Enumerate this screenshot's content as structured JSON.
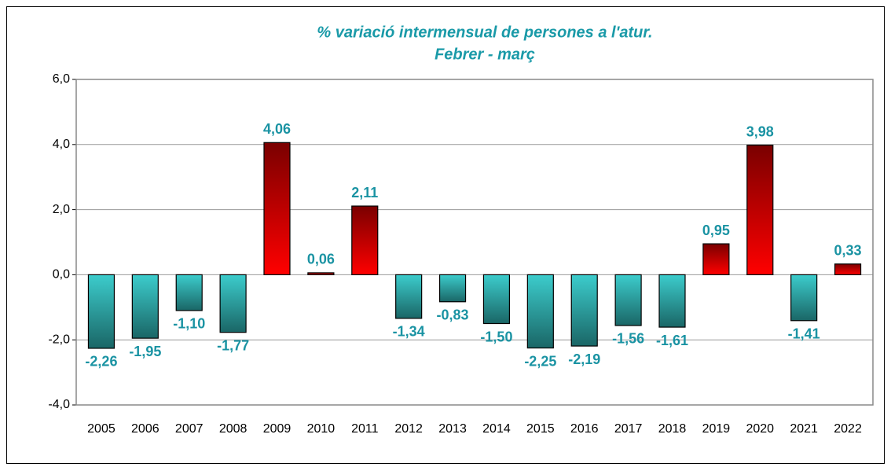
{
  "chart_data": {
    "type": "bar",
    "title": "% variació intermensual de persones a l'atur.",
    "subtitle": "Febrer - març",
    "categories": [
      "2005",
      "2006",
      "2007",
      "2008",
      "2009",
      "2010",
      "2011",
      "2012",
      "2013",
      "2014",
      "2015",
      "2016",
      "2017",
      "2018",
      "2019",
      "2020",
      "2021",
      "2022"
    ],
    "values": [
      -2.26,
      -1.95,
      -1.1,
      -1.77,
      4.06,
      0.06,
      2.11,
      -1.34,
      -0.83,
      -1.5,
      -2.25,
      -2.19,
      -1.56,
      -1.61,
      0.95,
      3.98,
      -1.41,
      0.33
    ],
    "value_labels": [
      "-2,26",
      "-1,95",
      "-1,10",
      "-1,77",
      "4,06",
      "0,06",
      "2,11",
      "-1,34",
      "-0,83",
      "-1,50",
      "-2,25",
      "-2,19",
      "-1,56",
      "-1,61",
      "0,95",
      "3,98",
      "-1,41",
      "0,33"
    ],
    "colors": {
      "positive": [
        "#7a0000",
        "#ff0000"
      ],
      "negative": [
        "#3ccccc",
        "#1a6666"
      ]
    },
    "ylim": [
      -4,
      6
    ],
    "yticks": [
      {
        "value": -4,
        "label": "-4,0"
      },
      {
        "value": -2,
        "label": "-2,0"
      },
      {
        "value": 0,
        "label": "0,0"
      },
      {
        "value": 2,
        "label": "2,0"
      },
      {
        "value": 4,
        "label": "4,0"
      },
      {
        "value": 6,
        "label": "6,0"
      }
    ],
    "grid": true
  }
}
